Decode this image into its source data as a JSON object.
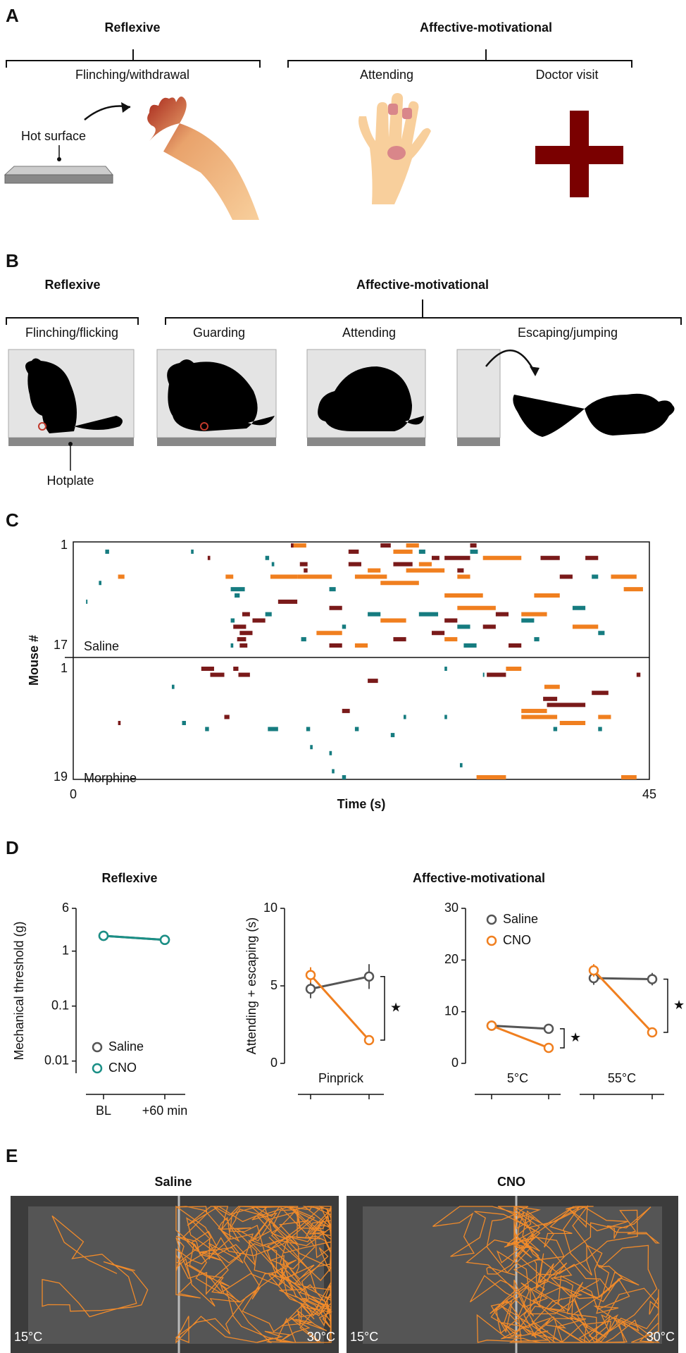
{
  "panel_A": {
    "label": "A",
    "reflexive": {
      "title": "Reflexive",
      "items": [
        "Flinching/withdrawal"
      ]
    },
    "affective": {
      "title": "Affective-motivational",
      "items": [
        "Attending",
        "Doctor visit"
      ]
    },
    "annotation": "Hot surface"
  },
  "panel_B": {
    "label": "B",
    "reflexive": {
      "title": "Reflexive",
      "items": [
        "Flinching/flicking"
      ]
    },
    "affective": {
      "title": "Affective-motivational",
      "items": [
        "Guarding",
        "Attending",
        "Escaping/jumping"
      ]
    },
    "annotation": "Hotplate"
  },
  "panel_C": {
    "label": "C"
  },
  "panel_D": {
    "label": "D",
    "titles": [
      "Reflexive",
      "Affective-motivational"
    ]
  },
  "panel_E": {
    "label": "E",
    "panels": [
      {
        "title": "Saline",
        "left": "15°C",
        "right": "30°C"
      },
      {
        "title": "CNO",
        "left": "15°C",
        "right": "30°C"
      }
    ]
  },
  "chart_data": [
    {
      "type": "raster",
      "ylabel": "Mouse #",
      "xlabel": "Time (s)",
      "xlim": [
        0,
        45
      ],
      "xticks": [
        0,
        45
      ],
      "groups": [
        {
          "label": "Saline",
          "ylim": [
            1,
            17
          ],
          "yticks": [
            1,
            17
          ],
          "series": [
            {
              "color": "#167c80",
              "events": [
                [
                  2,
                  2.5,
                  2.8
                ],
                [
                  2,
                  9.2,
                  9.4
                ],
                [
                  3,
                  15,
                  15.3
                ],
                [
                  2,
                  27,
                  27.5
                ],
                [
                  4,
                  15.5,
                  15.7
                ],
                [
                  7,
                  2,
                  2.2
                ],
                [
                  9,
                  12.6,
                  13
                ],
                [
                  12,
                  15,
                  15.5
                ],
                [
                  12,
                  23,
                  24
                ],
                [
                  12,
                  27,
                  28.5
                ],
                [
                  13,
                  12.3,
                  12.6
                ],
                [
                  14,
                  21,
                  21.3
                ],
                [
                  15,
                  41,
                  41.5
                ],
                [
                  16,
                  36,
                  36.4
                ],
                [
                  17,
                  12.3,
                  12.5
                ],
                [
                  10,
                  1,
                  1.1
                ],
                [
                  8,
                  12.3,
                  13.4
                ],
                [
                  8,
                  20,
                  20.5
                ],
                [
                  2,
                  31,
                  31.6
                ],
                [
                  11,
                  39,
                  40
                ],
                [
                  16,
                  17.8,
                  18.2
                ],
                [
                  14,
                  30,
                  31
                ],
                [
                  13,
                  35,
                  36
                ],
                [
                  6,
                  40.5,
                  41
                ],
                [
                  17,
                  30.5,
                  31.5
                ]
              ]
            },
            {
              "color": "#7a1a1a",
              "events": [
                [
                  1,
                  17,
                  17.8
                ],
                [
                  3,
                  10.5,
                  10.7
                ],
                [
                  4,
                  17.7,
                  18.3
                ],
                [
                  4,
                  21.5,
                  22.5
                ],
                [
                  5,
                  18,
                  18.3
                ],
                [
                  3,
                  28,
                  28.6
                ],
                [
                  12,
                  13.2,
                  13.8
                ],
                [
                  13,
                  14,
                  15
                ],
                [
                  14,
                  12.5,
                  13.5
                ],
                [
                  15,
                  13,
                  14
                ],
                [
                  16,
                  12.8,
                  13.5
                ],
                [
                  17,
                  13,
                  13.6
                ],
                [
                  1,
                  24,
                  24.8
                ],
                [
                  2,
                  21.5,
                  22.3
                ],
                [
                  3,
                  29,
                  31
                ],
                [
                  4,
                  25,
                  26.5
                ],
                [
                  3,
                  36.5,
                  38
                ],
                [
                  5,
                  30,
                  30.5
                ],
                [
                  12,
                  33,
                  34
                ],
                [
                  14,
                  32,
                  33
                ],
                [
                  15,
                  28,
                  29
                ],
                [
                  16,
                  25,
                  26
                ],
                [
                  17,
                  20,
                  21
                ],
                [
                  6,
                  38,
                  39
                ],
                [
                  1,
                  31,
                  31.5
                ],
                [
                  10,
                  16,
                  17.5
                ],
                [
                  3,
                  40,
                  41
                ],
                [
                  13,
                  29,
                  30
                ],
                [
                  11,
                  20,
                  21
                ],
                [
                  17,
                  34,
                  35
                ]
              ]
            },
            {
              "color": "#f07f1f",
              "events": [
                [
                  1,
                  17.2,
                  18.2
                ],
                [
                  6,
                  11.9,
                  12.5
                ],
                [
                  6,
                  3.5,
                  4
                ],
                [
                  6,
                  15.4,
                  17.5
                ],
                [
                  6,
                  17.5,
                  20.2
                ],
                [
                  6,
                  22,
                  24.5
                ],
                [
                  6,
                  30,
                  31
                ],
                [
                  6,
                  42,
                  44
                ],
                [
                  5,
                  23,
                  24
                ],
                [
                  5,
                  26,
                  29
                ],
                [
                  4,
                  27,
                  28
                ],
                [
                  3,
                  32,
                  35
                ],
                [
                  7,
                  24,
                  27
                ],
                [
                  9,
                  29,
                  32
                ],
                [
                  11,
                  30,
                  33
                ],
                [
                  12,
                  35,
                  37
                ],
                [
                  13,
                  24,
                  26
                ],
                [
                  15,
                  19,
                  21
                ],
                [
                  16,
                  29,
                  30
                ],
                [
                  17,
                  22,
                  23
                ],
                [
                  1,
                  26,
                  27
                ],
                [
                  2,
                  25,
                  26.5
                ],
                [
                  14,
                  39,
                  41
                ],
                [
                  9,
                  36,
                  38
                ],
                [
                  8,
                  43,
                  44.5
                ]
              ]
            }
          ]
        },
        {
          "label": "Morphine",
          "ylim": [
            1,
            19
          ],
          "yticks": [
            1,
            19
          ],
          "series": [
            {
              "color": "#167c80",
              "events": [
                [
                  1,
                  29,
                  29.2
                ],
                [
                  4,
                  7.7,
                  7.9
                ],
                [
                  2,
                  32,
                  32.1
                ],
                [
                  9,
                  25.8,
                  26
                ],
                [
                  9,
                  29,
                  29.2
                ],
                [
                  10,
                  8.5,
                  8.8
                ],
                [
                  11,
                  10.3,
                  10.6
                ],
                [
                  11,
                  15.2,
                  16
                ],
                [
                  11,
                  18.2,
                  18.5
                ],
                [
                  11,
                  22,
                  22.3
                ],
                [
                  11,
                  37.5,
                  37.8
                ],
                [
                  12,
                  24.8,
                  25.1
                ],
                [
                  14,
                  18.5,
                  18.7
                ],
                [
                  15,
                  20,
                  20.2
                ],
                [
                  17,
                  30.2,
                  30.4
                ],
                [
                  18,
                  20.2,
                  20.4
                ],
                [
                  19,
                  21,
                  21.3
                ],
                [
                  11,
                  41,
                  41.3
                ]
              ]
            },
            {
              "color": "#7a1a1a",
              "events": [
                [
                  1,
                  10,
                  11
                ],
                [
                  2,
                  10.7,
                  11.8
                ],
                [
                  1,
                  12.5,
                  12.9
                ],
                [
                  2,
                  12.9,
                  13.8
                ],
                [
                  3,
                  23,
                  23.8
                ],
                [
                  2,
                  32.3,
                  33.8
                ],
                [
                  6,
                  36.7,
                  37.8
                ],
                [
                  7,
                  37,
                  40
                ],
                [
                  5,
                  40.5,
                  41.8
                ],
                [
                  2,
                  44,
                  44.3
                ],
                [
                  8,
                  21,
                  21.6
                ],
                [
                  10,
                  3.5,
                  3.7
                ],
                [
                  9,
                  11.8,
                  12.2
                ]
              ]
            },
            {
              "color": "#f07f1f",
              "events": [
                [
                  1,
                  33.8,
                  35
                ],
                [
                  4,
                  36.8,
                  38
                ],
                [
                  8,
                  35,
                  37
                ],
                [
                  9,
                  35,
                  37.8
                ],
                [
                  9,
                  41,
                  42
                ],
                [
                  19,
                  31.5,
                  33.8
                ],
                [
                  19,
                  42.8,
                  44
                ],
                [
                  10,
                  38,
                  40
                ]
              ]
            }
          ]
        }
      ]
    },
    {
      "type": "line",
      "ylabel": "Mechanical threshold (g)",
      "log": true,
      "ylim": [
        0.006,
        6
      ],
      "yticks": [
        6,
        1,
        0.1,
        0.01
      ],
      "categories": [
        "BL",
        "+60 min"
      ],
      "series": [
        {
          "name": "Saline",
          "color": "#555555",
          "values": [
            1.9,
            1.6
          ],
          "errors": [
            0.15,
            0.12
          ]
        },
        {
          "name": "CNO",
          "color": "#1a8f86",
          "values": [
            1.9,
            1.6
          ],
          "errors": [
            0.15,
            0.12
          ]
        }
      ]
    },
    {
      "type": "line",
      "ylabel": "Attending + escaping (s)",
      "ylim": [
        0,
        10
      ],
      "yticks": [
        0,
        5,
        10
      ],
      "groups": [
        {
          "label": "Pinprick",
          "annotation": "★",
          "series": [
            {
              "color": "#555555",
              "values": [
                4.8,
                5.6
              ],
              "errors": [
                0.6,
                0.8
              ]
            },
            {
              "color": "#f07f1f",
              "values": [
                5.7,
                1.5
              ],
              "errors": [
                0.5,
                0.2
              ]
            }
          ]
        }
      ]
    },
    {
      "type": "line",
      "ylim": [
        0,
        30
      ],
      "yticks": [
        0,
        10,
        20,
        30
      ],
      "legend": [
        {
          "name": "Saline",
          "color": "#555555"
        },
        {
          "name": "CNO",
          "color": "#f07f1f"
        }
      ],
      "groups": [
        {
          "label": "5°C",
          "annotation": "★",
          "series": [
            {
              "color": "#555555",
              "values": [
                7.3,
                6.7
              ],
              "errors": [
                0.8,
                0.7
              ]
            },
            {
              "color": "#f07f1f",
              "values": [
                7.3,
                3.0
              ],
              "errors": [
                0.8,
                0.4
              ]
            }
          ]
        },
        {
          "label": "55°C",
          "annotation": "★",
          "series": [
            {
              "color": "#555555",
              "values": [
                16.5,
                16.3
              ],
              "errors": [
                1.3,
                1.2
              ]
            },
            {
              "color": "#f07f1f",
              "values": [
                18.0,
                6.0
              ],
              "errors": [
                1.2,
                0.6
              ]
            }
          ]
        }
      ]
    }
  ]
}
